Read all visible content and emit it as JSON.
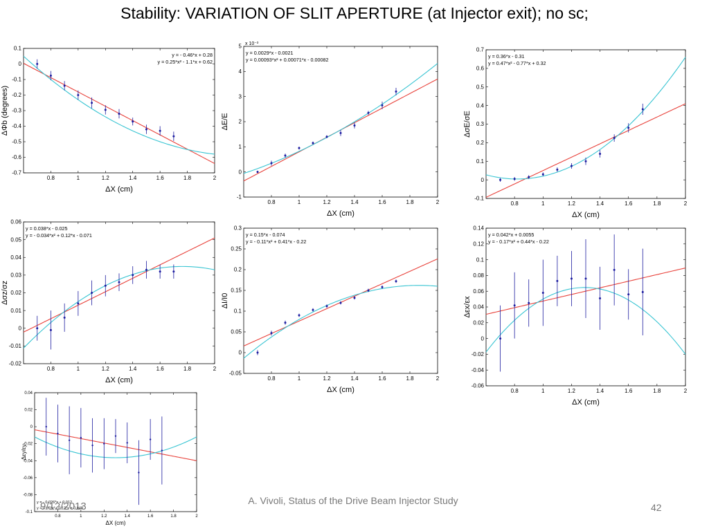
{
  "slide_title": "Stability: VARIATION OF SLIT APERTURE (at Injector exit); no sc;",
  "footer": {
    "date": "9/12/2013",
    "text": "A. Vivoli, Status of the Drive Beam Injector Study",
    "page": "42"
  },
  "colors": {
    "linear_fit": "#e8413a",
    "quadratic_fit": "#37c4d2",
    "data": "#1c1ca0"
  },
  "chart_data": [
    {
      "id": "phase",
      "type": "scatter",
      "xlabel": "ΔX (cm)",
      "ylabel": "ΔΦb (degrees)",
      "xlim": [
        0.6,
        2
      ],
      "ylim": [
        -0.7,
        0.1
      ],
      "xticks": [
        "0.8",
        "1",
        "1.2",
        "1.4",
        "1.6",
        "1.8",
        "2"
      ],
      "xtick_values": [
        0.8,
        1,
        1.2,
        1.4,
        1.6,
        1.8,
        2
      ],
      "yticks": [
        "0.1",
        "0",
        "-0.1",
        "-0.2",
        "-0.3",
        "-0.4",
        "-0.5",
        "-0.6",
        "-0.7"
      ],
      "ytick_values": [
        0.1,
        0,
        -0.1,
        -0.2,
        -0.3,
        -0.4,
        -0.5,
        -0.6,
        -0.7
      ],
      "equations": [
        "y = - 0.46*x + 0.28",
        "y = 0.25*x² - 1.1*x + 0.62"
      ],
      "equation_position": "top-right",
      "x": [
        0.7,
        0.8,
        0.9,
        1.0,
        1.1,
        1.2,
        1.3,
        1.4,
        1.5,
        1.6,
        1.7
      ],
      "y": [
        0.0,
        -0.075,
        -0.14,
        -0.2,
        -0.25,
        -0.295,
        -0.32,
        -0.37,
        -0.42,
        -0.43,
        -0.465
      ],
      "err": [
        0.03,
        0.03,
        0.03,
        0.03,
        0.035,
        0.03,
        0.03,
        0.025,
        0.03,
        0.03,
        0.03
      ],
      "linear": [
        -0.46,
        0.28
      ],
      "quadratic": [
        0.25,
        -1.1,
        0.62
      ]
    },
    {
      "id": "energy",
      "type": "scatter",
      "xlabel": "ΔX (cm)",
      "ylabel": "ΔE/E",
      "exponent": "x 10⁻³",
      "xlim": [
        0.6,
        2
      ],
      "ylim": [
        -1,
        5
      ],
      "xticks": [
        "0.8",
        "1",
        "1.2",
        "1.4",
        "1.6",
        "1.8",
        "2"
      ],
      "xtick_values": [
        0.8,
        1,
        1.2,
        1.4,
        1.6,
        1.8,
        2
      ],
      "yticks": [
        "5",
        "4",
        "3",
        "2",
        "1",
        "0",
        "-1"
      ],
      "ytick_values": [
        5,
        4,
        3,
        2,
        1,
        0,
        -1
      ],
      "equations": [
        "y = 0.0029*x - 0.0021",
        "y = 0.00093*x² + 0.00071*x - 0.00082"
      ],
      "equation_position": "top-left",
      "x": [
        0.7,
        0.8,
        0.9,
        1.0,
        1.1,
        1.2,
        1.3,
        1.4,
        1.5,
        1.6,
        1.7
      ],
      "y": [
        0.0,
        0.35,
        0.65,
        0.95,
        1.15,
        1.4,
        1.55,
        1.85,
        2.35,
        2.65,
        3.2
      ],
      "err": [
        0.05,
        0.1,
        0.08,
        0.06,
        0.06,
        0.06,
        0.12,
        0.12,
        0.08,
        0.15,
        0.15
      ],
      "scale": 1000,
      "linear": [
        0.0029,
        -0.0021
      ],
      "quadratic": [
        0.00093,
        0.00071,
        -0.00082
      ]
    },
    {
      "id": "energy-spread",
      "type": "scatter",
      "xlabel": "ΔX (cm)",
      "ylabel": "ΔσE/σE",
      "xlim": [
        0.6,
        2
      ],
      "ylim": [
        -0.1,
        0.7
      ],
      "xticks": [
        "0.8",
        "1",
        "1.2",
        "1.4",
        "1.6",
        "1.8",
        "2"
      ],
      "xtick_values": [
        0.8,
        1,
        1.2,
        1.4,
        1.6,
        1.8,
        2
      ],
      "yticks": [
        "0.7",
        "0.6",
        "0.5",
        "0.4",
        "0.3",
        "0.2",
        "0.1",
        "0",
        "-0.1"
      ],
      "ytick_values": [
        0.7,
        0.6,
        0.5,
        0.4,
        0.3,
        0.2,
        0.1,
        0,
        -0.1
      ],
      "equations": [
        "y = 0.36*x - 0.31",
        "y = 0.47*x² - 0.77*x + 0.32"
      ],
      "equation_position": "top-left",
      "x": [
        0.7,
        0.8,
        0.9,
        1.0,
        1.1,
        1.2,
        1.3,
        1.4,
        1.5,
        1.6,
        1.7
      ],
      "y": [
        0.0,
        0.005,
        0.015,
        0.03,
        0.055,
        0.075,
        0.1,
        0.14,
        0.225,
        0.28,
        0.38
      ],
      "err": [
        0.01,
        0.01,
        0.01,
        0.01,
        0.012,
        0.015,
        0.02,
        0.02,
        0.02,
        0.025,
        0.03
      ],
      "linear": [
        0.36,
        -0.31
      ],
      "quadratic": [
        0.47,
        -0.77,
        0.32
      ]
    },
    {
      "id": "bunch-length",
      "type": "scatter",
      "xlabel": "ΔX (cm)",
      "ylabel": "Δσz/σz",
      "xlim": [
        0.6,
        2
      ],
      "ylim": [
        -0.02,
        0.06
      ],
      "xticks": [
        "0.8",
        "1",
        "1.2",
        "1.4",
        "1.6",
        "1.8",
        "2"
      ],
      "xtick_values": [
        0.8,
        1,
        1.2,
        1.4,
        1.6,
        1.8,
        2
      ],
      "yticks": [
        "0.06",
        "0.05",
        "0.04",
        "0.03",
        "0.02",
        "0.01",
        "0",
        "-0.01",
        "-0.02"
      ],
      "ytick_values": [
        0.06,
        0.05,
        0.04,
        0.03,
        0.02,
        0.01,
        0,
        -0.01,
        -0.02
      ],
      "equations": [
        "y = 0.038*x - 0.025",
        "y = - 0.034*x² + 0.12*x - 0.071"
      ],
      "equation_position": "top-left",
      "x": [
        0.7,
        0.8,
        0.9,
        1.0,
        1.1,
        1.2,
        1.3,
        1.4,
        1.5,
        1.6,
        1.7
      ],
      "y": [
        0.0,
        -0.001,
        0.006,
        0.014,
        0.02,
        0.024,
        0.026,
        0.03,
        0.033,
        0.032,
        0.032
      ],
      "err": [
        0.007,
        0.011,
        0.008,
        0.007,
        0.007,
        0.006,
        0.005,
        0.005,
        0.005,
        0.004,
        0.004
      ],
      "linear": [
        0.038,
        -0.025
      ],
      "quadratic": [
        -0.034,
        0.12,
        -0.071
      ]
    },
    {
      "id": "current",
      "type": "scatter",
      "xlabel": "ΔX (cm)",
      "ylabel": "ΔI/I0",
      "xlim": [
        0.6,
        2
      ],
      "ylim": [
        -0.05,
        0.3
      ],
      "xticks": [
        "0.8",
        "1",
        "1.2",
        "1.4",
        "1.6",
        "1.8",
        "2"
      ],
      "xtick_values": [
        0.8,
        1,
        1.2,
        1.4,
        1.6,
        1.8,
        2
      ],
      "yticks": [
        "0.3",
        "0.25",
        "0.2",
        "0.15",
        "0.1",
        "0.05",
        "0",
        "-0.05"
      ],
      "ytick_values": [
        0.3,
        0.25,
        0.2,
        0.15,
        0.1,
        0.05,
        0,
        -0.05
      ],
      "equations": [
        "y = 0.15*x - 0.074",
        "y = - 0.11*x² + 0.41*x - 0.22"
      ],
      "equation_position": "top-left",
      "x": [
        0.7,
        0.8,
        0.9,
        1.0,
        1.1,
        1.2,
        1.3,
        1.4,
        1.5,
        1.6,
        1.7
      ],
      "y": [
        0.0,
        0.047,
        0.072,
        0.09,
        0.103,
        0.112,
        0.12,
        0.132,
        0.15,
        0.158,
        0.172
      ],
      "err": [
        0.006,
        0.006,
        0.005,
        0.004,
        0.004,
        0.004,
        0.004,
        0.004,
        0.004,
        0.004,
        0.004
      ],
      "linear": [
        0.15,
        -0.074
      ],
      "quadratic": [
        -0.11,
        0.41,
        -0.22
      ]
    },
    {
      "id": "emittance-x",
      "type": "scatter",
      "xlabel": "ΔX (cm)",
      "ylabel": "Δεx/εx",
      "xlim": [
        0.6,
        2
      ],
      "ylim": [
        -0.06,
        0.14
      ],
      "xticks": [
        "0.8",
        "1",
        "1.2",
        "1.4",
        "1.6",
        "1.8",
        "2"
      ],
      "xtick_values": [
        0.8,
        1,
        1.2,
        1.4,
        1.6,
        1.8,
        2
      ],
      "yticks": [
        "0.14",
        "0.12",
        "0.1",
        "0.08",
        "0.06",
        "0.04",
        "0.02",
        "0",
        "-0.02",
        "-0.04",
        "-0.06"
      ],
      "ytick_values": [
        0.14,
        0.12,
        0.1,
        0.08,
        0.06,
        0.04,
        0.02,
        0,
        -0.02,
        -0.04,
        -0.06
      ],
      "equations": [
        "y = 0.042*x + 0.0055",
        "y = - 0.17*x² + 0.44*x - 0.22"
      ],
      "equation_position": "top-left",
      "x": [
        0.7,
        0.8,
        0.9,
        1.0,
        1.1,
        1.2,
        1.3,
        1.4,
        1.5,
        1.6,
        1.7
      ],
      "y": [
        0.0,
        0.042,
        0.045,
        0.058,
        0.073,
        0.076,
        0.076,
        0.051,
        0.087,
        0.056,
        0.059
      ],
      "err": [
        0.042,
        0.042,
        0.03,
        0.042,
        0.032,
        0.035,
        0.05,
        0.04,
        0.045,
        0.032,
        0.055
      ],
      "linear": [
        0.042,
        0.0055
      ],
      "quadratic": [
        -0.17,
        0.44,
        -0.22
      ]
    },
    {
      "id": "emittance-y",
      "type": "scatter",
      "xlabel": "ΔX (cm)",
      "ylabel": "Δεy/εy",
      "xlim": [
        0.6,
        2
      ],
      "ylim": [
        -0.1,
        0.04
      ],
      "xticks": [
        "0.8",
        "1",
        "1.2",
        "1.4",
        "1.6",
        "1.8",
        "2"
      ],
      "xtick_values": [
        0.8,
        1,
        1.2,
        1.4,
        1.6,
        1.8,
        2
      ],
      "yticks": [
        "0.04",
        "0.02",
        "0",
        "-0.02",
        "-0.04",
        "-0.06",
        "-0.08",
        "-0.1"
      ],
      "ytick_values": [
        0.04,
        0.02,
        0,
        -0.02,
        -0.04,
        -0.06,
        -0.08,
        -0.1
      ],
      "equations": [
        "y = - 0.026*x + 0.012",
        "y = 0.05*x² - 0.13*x + 0.048"
      ],
      "equation_position": "bottom-left",
      "x": [
        0.7,
        0.8,
        0.9,
        1.0,
        1.1,
        1.2,
        1.3,
        1.4,
        1.5,
        1.6,
        1.7
      ],
      "y": [
        0.0,
        -0.008,
        -0.016,
        -0.013,
        -0.022,
        -0.02,
        -0.011,
        -0.019,
        -0.054,
        -0.015,
        -0.028
      ],
      "err": [
        0.034,
        0.034,
        0.04,
        0.035,
        0.032,
        0.03,
        0.02,
        0.024,
        0.038,
        0.024,
        0.04
      ],
      "linear": [
        -0.026,
        0.012
      ],
      "quadratic": [
        0.05,
        -0.13,
        0.048
      ]
    }
  ]
}
